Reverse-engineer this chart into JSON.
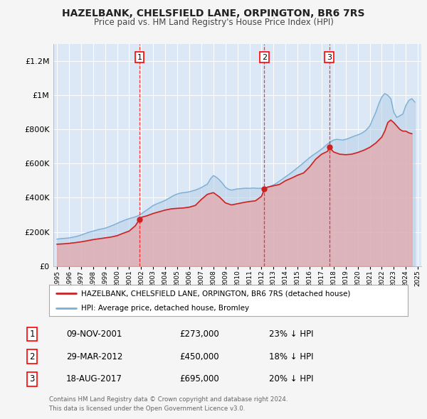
{
  "title": "HAZELBANK, CHELSFIELD LANE, ORPINGTON, BR6 7RS",
  "subtitle": "Price paid vs. HM Land Registry's House Price Index (HPI)",
  "fig_bg_color": "#f5f5f5",
  "plot_bg_color": "#dce8f5",
  "grid_color": "#ffffff",
  "red_line_color": "#cc2222",
  "blue_line_color": "#7bafd4",
  "red_fill_color": "#e8a0a0",
  "blue_fill_color": "#b8d0e8",
  "red_line_label": "HAZELBANK, CHELSFIELD LANE, ORPINGTON, BR6 7RS (detached house)",
  "blue_line_label": "HPI: Average price, detached house, Bromley",
  "transactions": [
    {
      "num": 1,
      "date": "09-NOV-2001",
      "year": 2001.86,
      "price": 273000,
      "pct": "23%",
      "dir": "↓"
    },
    {
      "num": 2,
      "date": "29-MAR-2012",
      "year": 2012.24,
      "price": 450000,
      "pct": "18%",
      "dir": "↓"
    },
    {
      "num": 3,
      "date": "18-AUG-2017",
      "year": 2017.63,
      "price": 695000,
      "pct": "20%",
      "dir": "↓"
    }
  ],
  "footnote1": "Contains HM Land Registry data © Crown copyright and database right 2024.",
  "footnote2": "This data is licensed under the Open Government Licence v3.0.",
  "ylim": [
    0,
    1300000
  ],
  "xlim_start": 1994.7,
  "xlim_end": 2025.3,
  "hpi_years": [
    1995.0,
    1995.25,
    1995.5,
    1995.75,
    1996.0,
    1996.25,
    1996.5,
    1996.75,
    1997.0,
    1997.25,
    1997.5,
    1997.75,
    1998.0,
    1998.25,
    1998.5,
    1998.75,
    1999.0,
    1999.25,
    1999.5,
    1999.75,
    2000.0,
    2000.25,
    2000.5,
    2000.75,
    2001.0,
    2001.25,
    2001.5,
    2001.75,
    2002.0,
    2002.25,
    2002.5,
    2002.75,
    2003.0,
    2003.25,
    2003.5,
    2003.75,
    2004.0,
    2004.25,
    2004.5,
    2004.75,
    2005.0,
    2005.25,
    2005.5,
    2005.75,
    2006.0,
    2006.25,
    2006.5,
    2006.75,
    2007.0,
    2007.25,
    2007.5,
    2007.75,
    2008.0,
    2008.25,
    2008.5,
    2008.75,
    2009.0,
    2009.25,
    2009.5,
    2009.75,
    2010.0,
    2010.25,
    2010.5,
    2010.75,
    2011.0,
    2011.25,
    2011.5,
    2011.75,
    2012.0,
    2012.25,
    2012.5,
    2012.75,
    2013.0,
    2013.25,
    2013.5,
    2013.75,
    2014.0,
    2014.25,
    2014.5,
    2014.75,
    2015.0,
    2015.25,
    2015.5,
    2015.75,
    2016.0,
    2016.25,
    2016.5,
    2016.75,
    2017.0,
    2017.25,
    2017.5,
    2017.75,
    2018.0,
    2018.25,
    2018.5,
    2018.75,
    2019.0,
    2019.25,
    2019.5,
    2019.75,
    2020.0,
    2020.25,
    2020.5,
    2020.75,
    2021.0,
    2021.25,
    2021.5,
    2021.75,
    2022.0,
    2022.25,
    2022.5,
    2022.75,
    2023.0,
    2023.25,
    2023.5,
    2023.75,
    2024.0,
    2024.25,
    2024.5,
    2024.75
  ],
  "hpi_values": [
    158000,
    160000,
    162000,
    163000,
    165000,
    168000,
    172000,
    176000,
    182000,
    188000,
    195000,
    200000,
    205000,
    210000,
    215000,
    218000,
    222000,
    228000,
    235000,
    242000,
    250000,
    258000,
    265000,
    272000,
    278000,
    283000,
    288000,
    295000,
    305000,
    318000,
    330000,
    342000,
    355000,
    363000,
    370000,
    377000,
    385000,
    395000,
    405000,
    415000,
    422000,
    427000,
    430000,
    432000,
    435000,
    440000,
    445000,
    452000,
    460000,
    470000,
    480000,
    510000,
    530000,
    520000,
    505000,
    485000,
    462000,
    450000,
    445000,
    448000,
    452000,
    453000,
    455000,
    456000,
    455000,
    457000,
    456000,
    455000,
    456000,
    460000,
    462000,
    468000,
    475000,
    485000,
    498000,
    510000,
    523000,
    535000,
    548000,
    562000,
    576000,
    590000,
    605000,
    620000,
    635000,
    648000,
    660000,
    672000,
    685000,
    700000,
    715000,
    728000,
    738000,
    742000,
    740000,
    738000,
    742000,
    748000,
    755000,
    762000,
    768000,
    775000,
    785000,
    800000,
    820000,
    860000,
    900000,
    950000,
    990000,
    1010000,
    1000000,
    980000,
    900000,
    870000,
    880000,
    890000,
    940000,
    970000,
    980000,
    960000
  ],
  "price_years": [
    1995.0,
    1995.5,
    1996.0,
    1996.5,
    1997.0,
    1997.5,
    1998.0,
    1998.5,
    1999.0,
    1999.5,
    2000.0,
    2000.5,
    2001.0,
    2001.5,
    2001.86,
    2002.0,
    2002.5,
    2003.0,
    2003.5,
    2004.0,
    2004.5,
    2005.0,
    2005.5,
    2006.0,
    2006.5,
    2007.0,
    2007.5,
    2008.0,
    2008.5,
    2009.0,
    2009.5,
    2010.0,
    2010.5,
    2011.0,
    2011.5,
    2012.0,
    2012.24,
    2012.5,
    2013.0,
    2013.5,
    2014.0,
    2014.5,
    2015.0,
    2015.5,
    2016.0,
    2016.5,
    2017.0,
    2017.5,
    2017.63,
    2018.0,
    2018.5,
    2019.0,
    2019.5,
    2020.0,
    2020.5,
    2021.0,
    2021.5,
    2022.0,
    2022.25,
    2022.5,
    2022.75,
    2023.0,
    2023.25,
    2023.5,
    2023.75,
    2024.0,
    2024.25,
    2024.5
  ],
  "price_values": [
    128000,
    130000,
    133000,
    137000,
    142000,
    148000,
    155000,
    160000,
    165000,
    170000,
    178000,
    192000,
    205000,
    235000,
    273000,
    285000,
    295000,
    308000,
    318000,
    328000,
    335000,
    338000,
    340000,
    345000,
    355000,
    390000,
    420000,
    430000,
    405000,
    370000,
    358000,
    365000,
    372000,
    378000,
    382000,
    408000,
    450000,
    462000,
    470000,
    478000,
    500000,
    515000,
    532000,
    545000,
    580000,
    625000,
    655000,
    672000,
    695000,
    668000,
    655000,
    652000,
    655000,
    665000,
    678000,
    695000,
    720000,
    755000,
    790000,
    840000,
    855000,
    840000,
    820000,
    800000,
    790000,
    790000,
    780000,
    775000
  ]
}
